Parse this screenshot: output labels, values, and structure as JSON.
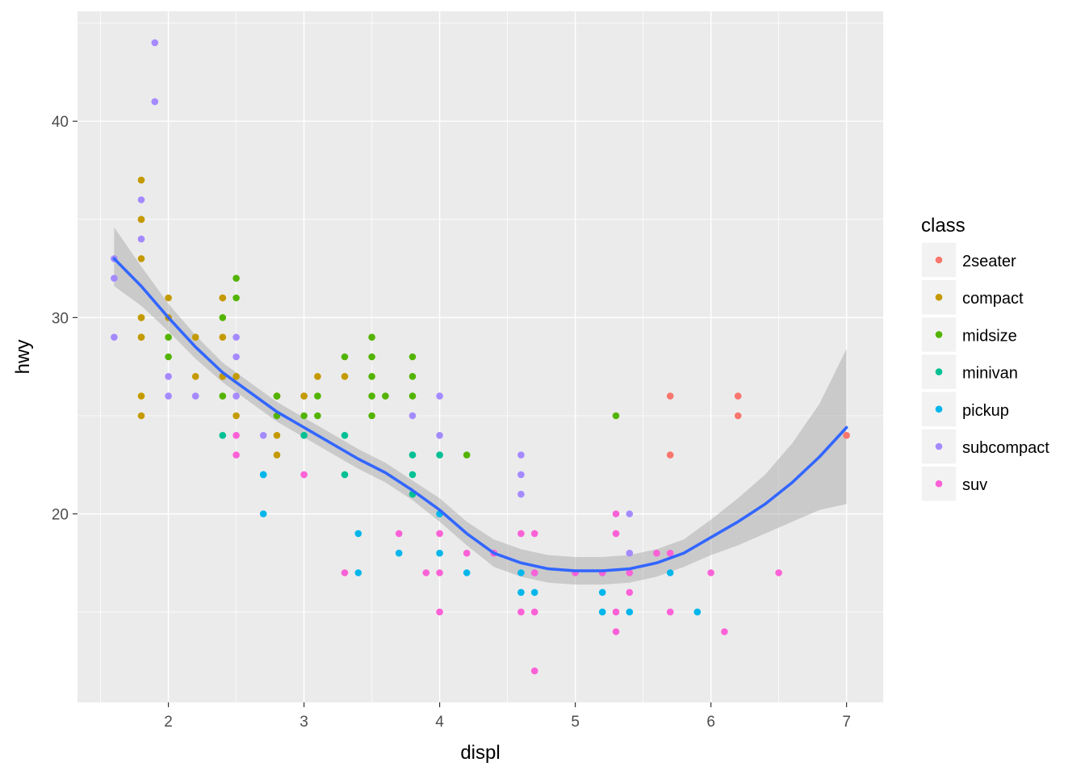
{
  "chart_data": {
    "type": "scatter",
    "xlabel": "displ",
    "ylabel": "hwy",
    "xlim": [
      1.33,
      7.27
    ],
    "ylim": [
      10.4,
      45.6
    ],
    "x_ticks": [
      2,
      3,
      4,
      5,
      6,
      7
    ],
    "y_ticks": [
      20,
      30,
      40
    ],
    "grid": true,
    "legend": {
      "title": "class",
      "position": "right",
      "entries": [
        {
          "name": "2seater",
          "color": "#F8766D"
        },
        {
          "name": "compact",
          "color": "#C49A00"
        },
        {
          "name": "midsize",
          "color": "#53B400"
        },
        {
          "name": "minivan",
          "color": "#00C094"
        },
        {
          "name": "pickup",
          "color": "#00B6EB"
        },
        {
          "name": "subcompact",
          "color": "#A58AFF"
        },
        {
          "name": "suv",
          "color": "#FB61D7"
        }
      ]
    },
    "series": [
      {
        "name": "2seater",
        "color": "#F8766D",
        "points": [
          [
            5.7,
            26
          ],
          [
            5.7,
            23
          ],
          [
            6.2,
            26
          ],
          [
            6.2,
            25
          ],
          [
            7.0,
            24
          ]
        ]
      },
      {
        "name": "compact",
        "color": "#C49A00",
        "points": [
          [
            1.8,
            29
          ],
          [
            1.8,
            29
          ],
          [
            2.0,
            31
          ],
          [
            2.0,
            30
          ],
          [
            2.8,
            26
          ],
          [
            2.8,
            26
          ],
          [
            1.8,
            26
          ],
          [
            1.8,
            25
          ],
          [
            1.8,
            33
          ],
          [
            1.8,
            35
          ],
          [
            1.8,
            37
          ],
          [
            1.8,
            35
          ],
          [
            1.8,
            30
          ],
          [
            2.2,
            29
          ],
          [
            2.2,
            27
          ],
          [
            2.4,
            31
          ],
          [
            2.4,
            31
          ],
          [
            3.0,
            26
          ],
          [
            3.0,
            26
          ],
          [
            3.3,
            27
          ],
          [
            3.1,
            27
          ],
          [
            2.4,
            29
          ],
          [
            2.4,
            27
          ],
          [
            2.5,
            27
          ],
          [
            2.5,
            25
          ],
          [
            2.8,
            24
          ],
          [
            2.8,
            23
          ],
          [
            1.8,
            30
          ]
        ]
      },
      {
        "name": "midsize",
        "color": "#53B400",
        "points": [
          [
            2.0,
            29
          ],
          [
            2.0,
            28
          ],
          [
            2.8,
            26
          ],
          [
            2.8,
            25
          ],
          [
            3.1,
            25
          ],
          [
            3.1,
            26
          ],
          [
            2.4,
            26
          ],
          [
            2.4,
            30
          ],
          [
            3.3,
            28
          ],
          [
            3.5,
            26
          ],
          [
            3.5,
            27
          ],
          [
            3.5,
            29
          ],
          [
            3.6,
            26
          ],
          [
            3.8,
            26
          ],
          [
            3.8,
            28
          ],
          [
            3.8,
            27
          ],
          [
            4.2,
            23
          ],
          [
            5.3,
            25
          ],
          [
            2.5,
            32
          ],
          [
            2.5,
            31
          ],
          [
            3.5,
            25
          ],
          [
            3.0,
            25
          ],
          [
            3.5,
            28
          ]
        ]
      },
      {
        "name": "minivan",
        "color": "#00C094",
        "points": [
          [
            2.4,
            24
          ],
          [
            3.0,
            24
          ],
          [
            3.3,
            22
          ],
          [
            3.3,
            24
          ],
          [
            3.8,
            22
          ],
          [
            3.8,
            21
          ],
          [
            3.8,
            23
          ],
          [
            4.0,
            23
          ],
          [
            4.0,
            20
          ]
        ]
      },
      {
        "name": "pickup",
        "color": "#00B6EB",
        "points": [
          [
            2.7,
            20
          ],
          [
            2.7,
            22
          ],
          [
            3.4,
            19
          ],
          [
            3.4,
            17
          ],
          [
            3.7,
            18
          ],
          [
            4.0,
            18
          ],
          [
            4.0,
            20
          ],
          [
            4.2,
            17
          ],
          [
            4.6,
            16
          ],
          [
            4.6,
            17
          ],
          [
            4.7,
            16
          ],
          [
            4.7,
            17
          ],
          [
            5.2,
            16
          ],
          [
            5.2,
            15
          ],
          [
            5.2,
            17
          ],
          [
            5.4,
            15
          ],
          [
            5.7,
            17
          ],
          [
            5.9,
            15
          ],
          [
            2.7,
            22
          ]
        ]
      },
      {
        "name": "subcompact",
        "color": "#A58AFF",
        "points": [
          [
            1.6,
            33
          ],
          [
            1.6,
            32
          ],
          [
            1.6,
            29
          ],
          [
            1.8,
            34
          ],
          [
            1.8,
            36
          ],
          [
            1.9,
            44
          ],
          [
            1.9,
            41
          ],
          [
            2.0,
            27
          ],
          [
            2.0,
            26
          ],
          [
            2.2,
            26
          ],
          [
            2.5,
            29
          ],
          [
            2.5,
            28
          ],
          [
            2.5,
            26
          ],
          [
            2.7,
            24
          ],
          [
            3.8,
            25
          ],
          [
            4.0,
            26
          ],
          [
            4.0,
            24
          ],
          [
            4.4,
            18
          ],
          [
            4.6,
            23
          ],
          [
            4.6,
            22
          ],
          [
            4.6,
            21
          ],
          [
            5.4,
            20
          ],
          [
            5.4,
            18
          ],
          [
            4.7,
            17
          ]
        ]
      },
      {
        "name": "suv",
        "color": "#FB61D7",
        "points": [
          [
            2.5,
            24
          ],
          [
            2.5,
            23
          ],
          [
            3.0,
            22
          ],
          [
            3.3,
            17
          ],
          [
            3.7,
            19
          ],
          [
            3.9,
            17
          ],
          [
            4.0,
            19
          ],
          [
            4.0,
            17
          ],
          [
            4.0,
            15
          ],
          [
            4.2,
            18
          ],
          [
            4.4,
            18
          ],
          [
            4.6,
            19
          ],
          [
            4.6,
            15
          ],
          [
            4.7,
            19
          ],
          [
            4.7,
            17
          ],
          [
            4.7,
            15
          ],
          [
            4.7,
            12
          ],
          [
            5.0,
            17
          ],
          [
            5.2,
            17
          ],
          [
            5.3,
            20
          ],
          [
            5.3,
            19
          ],
          [
            5.3,
            15
          ],
          [
            5.3,
            14
          ],
          [
            5.4,
            17
          ],
          [
            5.4,
            16
          ],
          [
            5.6,
            18
          ],
          [
            5.7,
            18
          ],
          [
            5.7,
            15
          ],
          [
            6.0,
            17
          ],
          [
            6.1,
            14
          ],
          [
            6.5,
            17
          ]
        ]
      }
    ],
    "smooth": {
      "color": "#3366FF",
      "band_color": "#999999",
      "x": [
        1.6,
        1.8,
        2.0,
        2.2,
        2.4,
        2.6,
        2.8,
        3.0,
        3.2,
        3.4,
        3.6,
        3.8,
        4.0,
        4.2,
        4.4,
        4.6,
        4.8,
        5.0,
        5.2,
        5.4,
        5.6,
        5.8,
        6.0,
        6.2,
        6.4,
        6.6,
        6.8,
        7.0
      ],
      "y": [
        33.0,
        31.6,
        30.0,
        28.5,
        27.2,
        26.2,
        25.2,
        24.4,
        23.6,
        22.8,
        22.1,
        21.2,
        20.2,
        19.0,
        18.0,
        17.5,
        17.2,
        17.1,
        17.1,
        17.2,
        17.5,
        18.0,
        18.8,
        19.6,
        20.5,
        21.6,
        22.9,
        24.4
      ],
      "lower": [
        31.6,
        30.6,
        29.3,
        27.9,
        26.7,
        25.7,
        24.7,
        23.9,
        23.1,
        22.3,
        21.6,
        20.7,
        19.6,
        18.4,
        17.3,
        16.8,
        16.5,
        16.4,
        16.4,
        16.5,
        16.8,
        17.3,
        17.9,
        18.4,
        19.0,
        19.6,
        20.2,
        20.5
      ],
      "upper": [
        34.6,
        32.6,
        30.7,
        29.1,
        27.7,
        26.7,
        25.7,
        24.9,
        24.1,
        23.3,
        22.6,
        21.7,
        20.8,
        19.6,
        18.7,
        18.2,
        17.9,
        17.8,
        17.8,
        17.9,
        18.2,
        18.7,
        19.7,
        20.8,
        22.0,
        23.6,
        25.6,
        28.4
      ]
    }
  }
}
